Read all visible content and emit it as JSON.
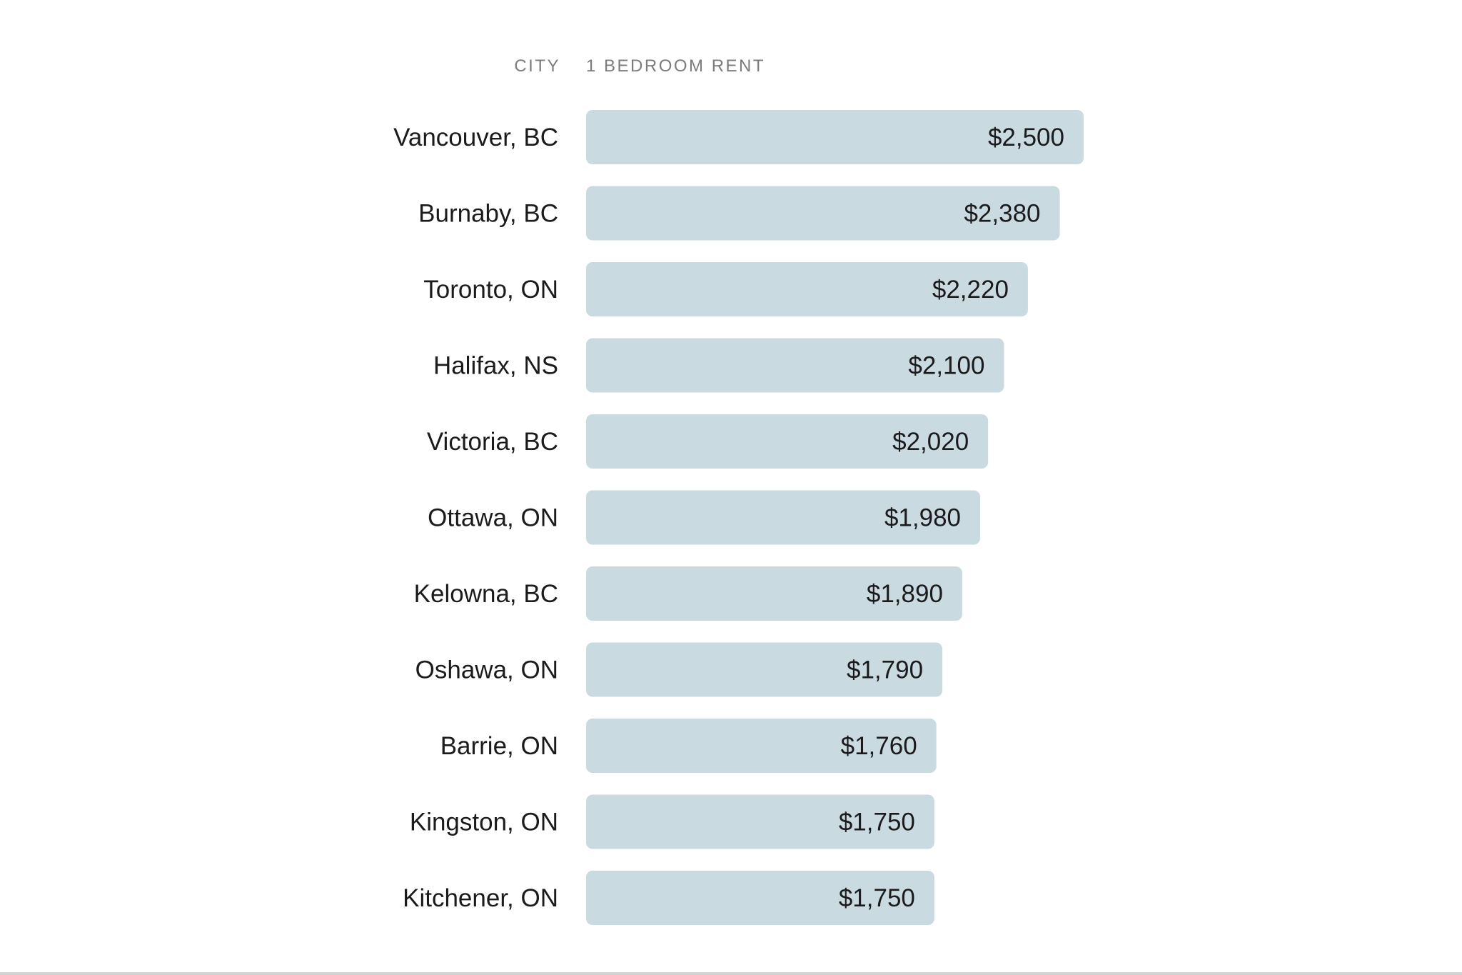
{
  "chart_data": {
    "type": "bar",
    "orientation": "horizontal",
    "category_header": "CITY",
    "value_header": "1 BEDROOM RENT",
    "categories": [
      "Vancouver, BC",
      "Burnaby, BC",
      "Toronto, ON",
      "Halifax, NS",
      "Victoria, BC",
      "Ottawa, ON",
      "Kelowna, BC",
      "Oshawa, ON",
      "Barrie, ON",
      "Kingston, ON",
      "Kitchener, ON"
    ],
    "values": [
      2500,
      2380,
      2220,
      2100,
      2020,
      1980,
      1890,
      1790,
      1760,
      1750,
      1750
    ],
    "value_labels": [
      "$2,500",
      "$2,380",
      "$2,220",
      "$2,100",
      "$2,020",
      "$1,980",
      "$1,890",
      "$1,790",
      "$1,760",
      "$1,750",
      "$1,750"
    ],
    "bar_color": "#c9dae0",
    "grid": false,
    "legend": "none"
  }
}
